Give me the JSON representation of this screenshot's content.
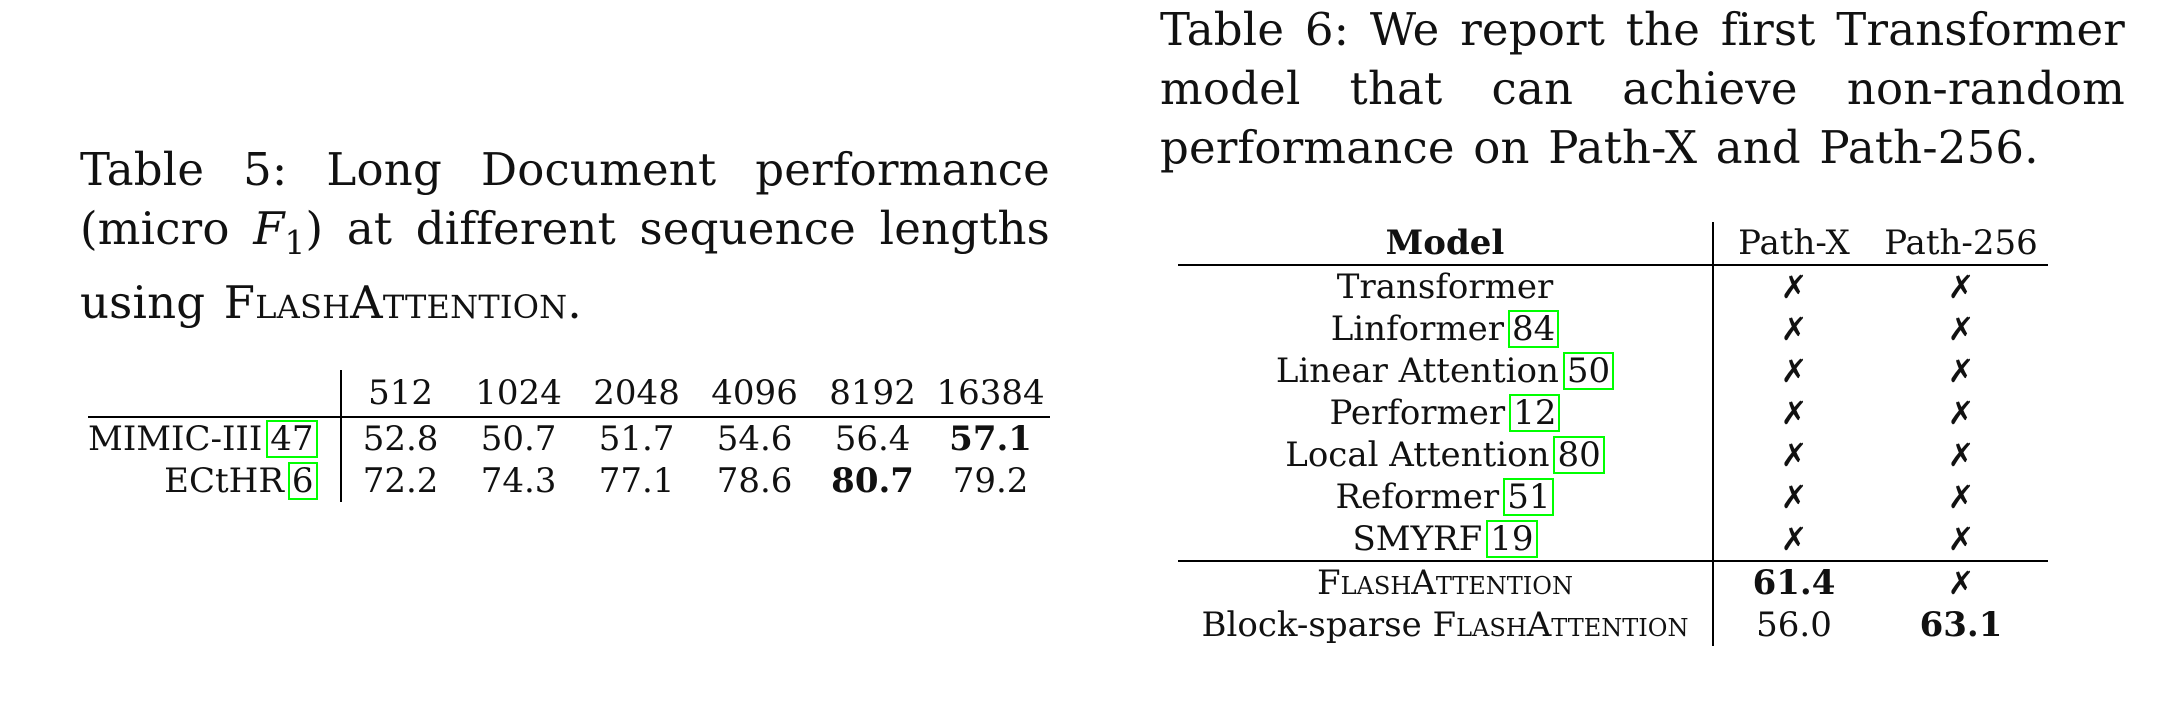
{
  "table5": {
    "caption_prefix": "Table 5:",
    "caption_text_1": "Long Document performance (micro ",
    "caption_math_var": "F",
    "caption_math_sub": "1",
    "caption_text_2": ") at different sequence lengths using ",
    "caption_method": "FlashAttention",
    "caption_end": ".",
    "columns": [
      "512",
      "1024",
      "2048",
      "4096",
      "8192",
      "16384"
    ],
    "rows": [
      {
        "label": "MIMIC-III",
        "ref": "47",
        "values": [
          "52.8",
          "50.7",
          "51.7",
          "54.6",
          "56.4",
          "57.1"
        ]
      },
      {
        "label": "ECtHR",
        "ref": "6",
        "values": [
          "72.2",
          "74.3",
          "77.1",
          "78.6",
          "80.7",
          "79.2"
        ]
      }
    ]
  },
  "table6": {
    "caption_prefix": "Table 6:",
    "caption_text": "We report the first Transformer model that can achieve non-random performance on Path-X and Path-256.",
    "header_model": "Model",
    "header_col1": "Path-X",
    "header_col2": "Path-256",
    "fail_mark": "✗",
    "baselines": [
      {
        "name": "Transformer",
        "ref": "",
        "pathx": "✗",
        "path256": "✗"
      },
      {
        "name": "Linformer",
        "ref": "84",
        "pathx": "✗",
        "path256": "✗"
      },
      {
        "name": "Linear Attention",
        "ref": "50",
        "pathx": "✗",
        "path256": "✗"
      },
      {
        "name": "Performer",
        "ref": "12",
        "pathx": "✗",
        "path256": "✗"
      },
      {
        "name": "Local Attention",
        "ref": "80",
        "pathx": "✗",
        "path256": "✗"
      },
      {
        "name": "Reformer",
        "ref": "51",
        "pathx": "✗",
        "path256": "✗"
      },
      {
        "name": "SMYRF",
        "ref": "19",
        "pathx": "✗",
        "path256": "✗"
      }
    ],
    "ours": [
      {
        "prefix": "",
        "method": "FlashAttention",
        "pathx": "61.4",
        "path256": "✗"
      },
      {
        "prefix": "Block-sparse ",
        "method": "FlashAttention",
        "pathx": "56.0",
        "path256": "63.1"
      }
    ]
  }
}
